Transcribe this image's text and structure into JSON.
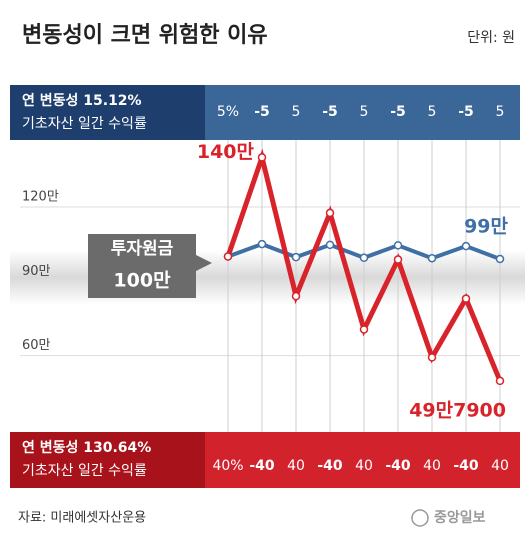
{
  "chart_data": {
    "type": "line",
    "title": "변동성이 크면 위험한 이유",
    "unit": "단위: 원",
    "source": "자료: 미래에셋자산운용",
    "logo": "중앙일보",
    "categories": [
      null,
      null,
      null,
      null,
      null,
      null,
      null,
      null,
      null
    ],
    "ylim": [
      32,
      145
    ],
    "yticks": [
      {
        "value": 120,
        "label": "120만"
      },
      {
        "value": 90,
        "label": "90만"
      },
      {
        "value": 60,
        "label": "60만"
      }
    ],
    "grid": true,
    "start_title": "투자원금",
    "start_value_label": "100만",
    "series": [
      {
        "name": "연 변동성 15.12%",
        "subtitle": "기초자산 일간 수익률",
        "color": "#3f6fa5",
        "returns": [
          {
            "value": 5,
            "label": "5%"
          },
          -5,
          5,
          -5,
          5,
          -5,
          5,
          -5,
          5
        ],
        "values": [
          100,
          105,
          99.75,
          104.7,
          99.5,
          104.5,
          99.3,
          104.2,
          99
        ],
        "value_labels": [
          null,
          null,
          null,
          null,
          null,
          null,
          null,
          null,
          "99만"
        ]
      },
      {
        "name": "연 변동성 130.64%",
        "subtitle": "기초자산 일간 수익률",
        "color": "#d8232a",
        "returns": [
          {
            "value": 40,
            "label": "40%"
          },
          -40,
          40,
          -40,
          40,
          -40,
          40,
          -40,
          40
        ],
        "values": [
          100,
          140,
          84,
          117.6,
          70.56,
          98.78,
          59.27,
          82.98,
          49.79
        ],
        "value_labels": [
          null,
          "140만",
          null,
          null,
          null,
          null,
          null,
          null,
          "49만7900"
        ]
      }
    ]
  }
}
